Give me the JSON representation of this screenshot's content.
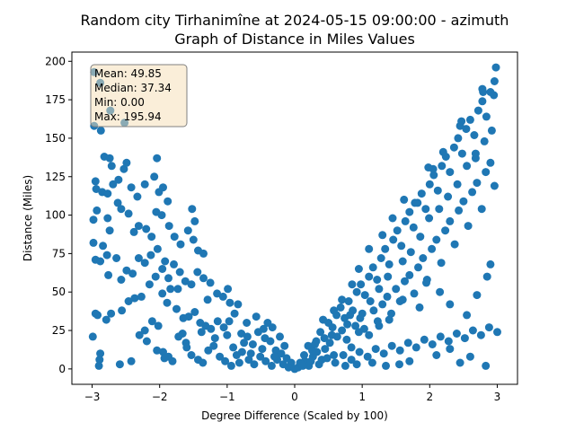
{
  "chart_data": {
    "type": "scatter",
    "title_line1": "Random city Tirhanimîne at 2024-05-15 09:00:00  - azimuth",
    "title_line2": "Graph of Distance in Miles Values",
    "xlabel": "Degree Difference (Scaled by 100)",
    "ylabel": "Distance (Miles)",
    "xlim": [
      -3.3,
      3.3
    ],
    "ylim": [
      -10,
      206
    ],
    "x_ticks": [
      -3,
      -2,
      -1,
      0,
      1,
      2,
      3
    ],
    "y_ticks": [
      0,
      25,
      50,
      75,
      100,
      125,
      150,
      175,
      200
    ],
    "grid": false,
    "marker_color": "#1f77b4",
    "stats_box": {
      "mean": "Mean: 49.85",
      "median": "Median: 37.34",
      "min": "Min: 0.00",
      "max": "Max: 195.94",
      "placement": "top-left",
      "background": "#f5deb3",
      "border": "#808080"
    },
    "points": [
      [
        -2.97,
        193
      ],
      [
        -2.88,
        186
      ],
      [
        -2.73,
        168
      ],
      [
        -2.97,
        158
      ],
      [
        -2.52,
        160
      ],
      [
        -2.87,
        155
      ],
      [
        -2.95,
        122
      ],
      [
        -2.94,
        117
      ],
      [
        -2.82,
        138
      ],
      [
        -2.74,
        137
      ],
      [
        -2.71,
        132
      ],
      [
        -2.85,
        115
      ],
      [
        -2.77,
        114
      ],
      [
        -2.69,
        120
      ],
      [
        -2.61,
        123
      ],
      [
        -2.53,
        130
      ],
      [
        -2.49,
        134
      ],
      [
        -2.42,
        118
      ],
      [
        -2.33,
        112
      ],
      [
        -2.22,
        120
      ],
      [
        -2.04,
        137
      ],
      [
        -2.08,
        125
      ],
      [
        -2.01,
        115
      ],
      [
        -1.95,
        118
      ],
      [
        -1.88,
        109
      ],
      [
        -2.98,
        97
      ],
      [
        -2.93,
        103
      ],
      [
        -2.77,
        98
      ],
      [
        -2.74,
        90
      ],
      [
        -2.62,
        108
      ],
      [
        -2.57,
        104
      ],
      [
        -2.46,
        101
      ],
      [
        -2.38,
        89
      ],
      [
        -2.31,
        93
      ],
      [
        -2.2,
        91
      ],
      [
        -2.12,
        86
      ],
      [
        -2.05,
        102
      ],
      [
        -1.97,
        100
      ],
      [
        -1.86,
        93
      ],
      [
        -1.78,
        86
      ],
      [
        -1.69,
        81
      ],
      [
        -1.58,
        90
      ],
      [
        -1.5,
        84
      ],
      [
        -1.43,
        77
      ],
      [
        -1.35,
        75
      ],
      [
        -1.52,
        104
      ],
      [
        -1.48,
        96
      ],
      [
        -2.98,
        82
      ],
      [
        -2.95,
        71
      ],
      [
        -2.88,
        70
      ],
      [
        -2.84,
        80
      ],
      [
        -2.78,
        74
      ],
      [
        -2.76,
        61
      ],
      [
        -2.64,
        72
      ],
      [
        -2.57,
        58
      ],
      [
        -2.49,
        64
      ],
      [
        -2.4,
        62
      ],
      [
        -2.31,
        72
      ],
      [
        -2.22,
        69
      ],
      [
        -2.13,
        74
      ],
      [
        -2.03,
        78
      ],
      [
        -1.96,
        65
      ],
      [
        -1.87,
        59
      ],
      [
        -1.79,
        68
      ],
      [
        -1.7,
        63
      ],
      [
        -1.62,
        57
      ],
      [
        -1.53,
        55
      ],
      [
        -1.44,
        63
      ],
      [
        -1.35,
        59
      ],
      [
        -1.25,
        56
      ],
      [
        -1.15,
        49
      ],
      [
        -1.06,
        47
      ],
      [
        -0.96,
        43
      ],
      [
        -2.95,
        36
      ],
      [
        -2.92,
        35
      ],
      [
        -2.88,
        10
      ],
      [
        -2.89,
        6
      ],
      [
        -2.9,
        2
      ],
      [
        -2.79,
        32
      ],
      [
        -2.72,
        36
      ],
      [
        -2.56,
        38
      ],
      [
        -2.46,
        44
      ],
      [
        -2.37,
        46
      ],
      [
        -2.3,
        22
      ],
      [
        -2.22,
        25
      ],
      [
        -2.11,
        31
      ],
      [
        -2.02,
        28
      ],
      [
        -1.96,
        49
      ],
      [
        -1.89,
        43
      ],
      [
        -1.84,
        52
      ],
      [
        -1.75,
        39
      ],
      [
        -1.65,
        33
      ],
      [
        -1.57,
        34
      ],
      [
        -1.48,
        37
      ],
      [
        -1.4,
        30
      ],
      [
        -1.32,
        28
      ],
      [
        -1.24,
        26
      ],
      [
        -1.14,
        31
      ],
      [
        -1.05,
        27
      ],
      [
        -0.97,
        31
      ],
      [
        -0.89,
        36
      ],
      [
        -0.79,
        23
      ],
      [
        -0.7,
        21
      ],
      [
        -0.62,
        16
      ],
      [
        -0.54,
        24
      ],
      [
        -0.44,
        20
      ],
      [
        -0.36,
        18
      ],
      [
        -0.28,
        12
      ],
      [
        -0.2,
        10
      ],
      [
        -0.12,
        7
      ],
      [
        -0.05,
        4
      ],
      [
        -2.99,
        21
      ],
      [
        -2.59,
        3
      ],
      [
        -2.42,
        5
      ],
      [
        -2.19,
        18
      ],
      [
        -2.04,
        12
      ],
      [
        -1.95,
        11
      ],
      [
        -1.87,
        8
      ],
      [
        -1.81,
        5
      ],
      [
        -1.72,
        21
      ],
      [
        -1.61,
        17
      ],
      [
        -1.53,
        9
      ],
      [
        -1.43,
        6
      ],
      [
        -1.36,
        4
      ],
      [
        -1.28,
        12
      ],
      [
        -1.2,
        15
      ],
      [
        -1.11,
        8
      ],
      [
        -1.03,
        5
      ],
      [
        -0.94,
        2
      ],
      [
        -0.86,
        9
      ],
      [
        -0.78,
        11
      ],
      [
        -0.68,
        6
      ],
      [
        -0.6,
        3
      ],
      [
        -0.51,
        8
      ],
      [
        -0.43,
        5
      ],
      [
        -0.34,
        2
      ],
      [
        -0.26,
        6
      ],
      [
        -0.17,
        3
      ],
      [
        -0.09,
        1
      ],
      [
        -1.6,
        14
      ],
      [
        -1.18,
        20
      ],
      [
        -0.91,
        14
      ],
      [
        -0.75,
        17
      ],
      [
        -0.48,
        13
      ],
      [
        -0.4,
        30
      ],
      [
        -0.33,
        27
      ],
      [
        -0.22,
        21
      ],
      [
        -0.15,
        15
      ],
      [
        -0.3,
        8
      ],
      [
        -0.65,
        10
      ],
      [
        -0.82,
        4
      ],
      [
        -1.0,
        22
      ],
      [
        -1.38,
        24
      ],
      [
        -1.66,
        23
      ],
      [
        -1.93,
        7
      ],
      [
        -2.27,
        47
      ],
      [
        -2.15,
        55
      ],
      [
        -2.06,
        60
      ],
      [
        -1.92,
        70
      ],
      [
        -1.73,
        52
      ],
      [
        -1.29,
        45
      ],
      [
        -0.99,
        52
      ],
      [
        -0.84,
        42
      ],
      [
        -0.71,
        30
      ],
      [
        -0.57,
        34
      ],
      [
        -0.46,
        26
      ],
      [
        0.0,
        0
      ],
      [
        0.05,
        1
      ],
      [
        0.1,
        3
      ],
      [
        0.15,
        5
      ],
      [
        0.21,
        2
      ],
      [
        0.27,
        8
      ],
      [
        0.33,
        11
      ],
      [
        0.4,
        6
      ],
      [
        0.45,
        13
      ],
      [
        0.52,
        17
      ],
      [
        0.58,
        9
      ],
      [
        0.63,
        21
      ],
      [
        0.7,
        25
      ],
      [
        0.77,
        19
      ],
      [
        0.84,
        14
      ],
      [
        0.9,
        28
      ],
      [
        0.97,
        33
      ],
      [
        1.03,
        26
      ],
      [
        1.1,
        22
      ],
      [
        1.17,
        38
      ],
      [
        1.23,
        31
      ],
      [
        1.3,
        42
      ],
      [
        1.37,
        47
      ],
      [
        1.43,
        36
      ],
      [
        1.5,
        52
      ],
      [
        1.56,
        44
      ],
      [
        1.63,
        57
      ],
      [
        1.7,
        61
      ],
      [
        1.77,
        49
      ],
      [
        1.83,
        66
      ],
      [
        1.9,
        72
      ],
      [
        1.96,
        58
      ],
      [
        2.03,
        78
      ],
      [
        2.1,
        84
      ],
      [
        2.17,
        69
      ],
      [
        2.23,
        90
      ],
      [
        2.3,
        96
      ],
      [
        2.37,
        81
      ],
      [
        2.43,
        103
      ],
      [
        2.5,
        109
      ],
      [
        2.57,
        93
      ],
      [
        2.63,
        115
      ],
      [
        2.7,
        121
      ],
      [
        2.77,
        104
      ],
      [
        2.83,
        128
      ],
      [
        2.9,
        134
      ],
      [
        2.96,
        119
      ],
      [
        0.08,
        4
      ],
      [
        0.14,
        9
      ],
      [
        0.2,
        15
      ],
      [
        0.26,
        12
      ],
      [
        0.32,
        18
      ],
      [
        0.38,
        24
      ],
      [
        0.44,
        20
      ],
      [
        0.5,
        30
      ],
      [
        0.56,
        27
      ],
      [
        0.62,
        35
      ],
      [
        0.68,
        40
      ],
      [
        0.74,
        33
      ],
      [
        0.8,
        44
      ],
      [
        0.86,
        38
      ],
      [
        0.92,
        50
      ],
      [
        0.98,
        55
      ],
      [
        1.04,
        48
      ],
      [
        1.1,
        60
      ],
      [
        1.16,
        66
      ],
      [
        1.22,
        58
      ],
      [
        1.28,
        72
      ],
      [
        1.34,
        78
      ],
      [
        1.4,
        68
      ],
      [
        1.46,
        84
      ],
      [
        1.52,
        90
      ],
      [
        1.58,
        80
      ],
      [
        1.64,
        96
      ],
      [
        1.7,
        102
      ],
      [
        1.76,
        92
      ],
      [
        1.82,
        108
      ],
      [
        1.88,
        114
      ],
      [
        1.94,
        104
      ],
      [
        2.0,
        120
      ],
      [
        2.06,
        126
      ],
      [
        2.12,
        116
      ],
      [
        2.18,
        132
      ],
      [
        2.24,
        138
      ],
      [
        2.3,
        128
      ],
      [
        2.36,
        144
      ],
      [
        2.42,
        150
      ],
      [
        2.48,
        140
      ],
      [
        2.54,
        156
      ],
      [
        2.6,
        162
      ],
      [
        2.66,
        152
      ],
      [
        2.72,
        168
      ],
      [
        2.78,
        174
      ],
      [
        2.84,
        164
      ],
      [
        2.9,
        180
      ],
      [
        2.96,
        187
      ],
      [
        0.12,
        2
      ],
      [
        0.24,
        5
      ],
      [
        0.36,
        3
      ],
      [
        0.48,
        7
      ],
      [
        0.6,
        4
      ],
      [
        0.72,
        9
      ],
      [
        0.84,
        6
      ],
      [
        0.96,
        11
      ],
      [
        1.08,
        8
      ],
      [
        1.2,
        13
      ],
      [
        1.32,
        10
      ],
      [
        1.44,
        15
      ],
      [
        1.56,
        12
      ],
      [
        1.68,
        17
      ],
      [
        1.8,
        14
      ],
      [
        1.92,
        19
      ],
      [
        2.04,
        16
      ],
      [
        2.16,
        21
      ],
      [
        2.28,
        18
      ],
      [
        2.4,
        23
      ],
      [
        2.52,
        20
      ],
      [
        2.64,
        25
      ],
      [
        2.76,
        22
      ],
      [
        2.88,
        27
      ],
      [
        3.0,
        24
      ],
      [
        0.3,
        16
      ],
      [
        0.55,
        22
      ],
      [
        0.78,
        29
      ],
      [
        1.0,
        36
      ],
      [
        1.12,
        44
      ],
      [
        1.25,
        52
      ],
      [
        1.38,
        60
      ],
      [
        1.6,
        70
      ],
      [
        1.72,
        76
      ],
      [
        1.86,
        86
      ],
      [
        1.99,
        98
      ],
      [
        2.14,
        104
      ],
      [
        2.27,
        112
      ],
      [
        2.41,
        120
      ],
      [
        2.55,
        132
      ],
      [
        2.68,
        140
      ],
      [
        2.81,
        148
      ],
      [
        2.92,
        155
      ],
      [
        2.98,
        196
      ],
      [
        2.95,
        178
      ],
      [
        2.78,
        182
      ],
      [
        2.79,
        180
      ],
      [
        2.68,
        137
      ],
      [
        2.47,
        161
      ],
      [
        2.45,
        158
      ],
      [
        2.2,
        141
      ],
      [
        2.05,
        130
      ],
      [
        1.98,
        131
      ],
      [
        1.78,
        108
      ],
      [
        1.62,
        110
      ],
      [
        1.45,
        98
      ],
      [
        1.3,
        87
      ],
      [
        1.1,
        78
      ],
      [
        0.95,
        65
      ],
      [
        0.85,
        55
      ],
      [
        0.7,
        45
      ],
      [
        0.58,
        38
      ],
      [
        0.42,
        32
      ],
      [
        2.1,
        9
      ],
      [
        2.3,
        13
      ],
      [
        2.45,
        4
      ],
      [
        2.6,
        8
      ],
      [
        2.83,
        2
      ],
      [
        1.7,
        5
      ],
      [
        1.55,
        3
      ],
      [
        1.35,
        2
      ],
      [
        1.15,
        4
      ],
      [
        0.92,
        3
      ],
      [
        0.75,
        2
      ],
      [
        2.55,
        35
      ],
      [
        2.7,
        48
      ],
      [
        2.85,
        60
      ],
      [
        2.9,
        68
      ],
      [
        2.3,
        42
      ],
      [
        2.15,
        50
      ],
      [
        1.95,
        56
      ],
      [
        1.85,
        40
      ],
      [
        1.6,
        45
      ],
      [
        1.4,
        32
      ],
      [
        1.25,
        28
      ],
      [
        0.95,
        24
      ],
      [
        0.82,
        35
      ]
    ]
  }
}
